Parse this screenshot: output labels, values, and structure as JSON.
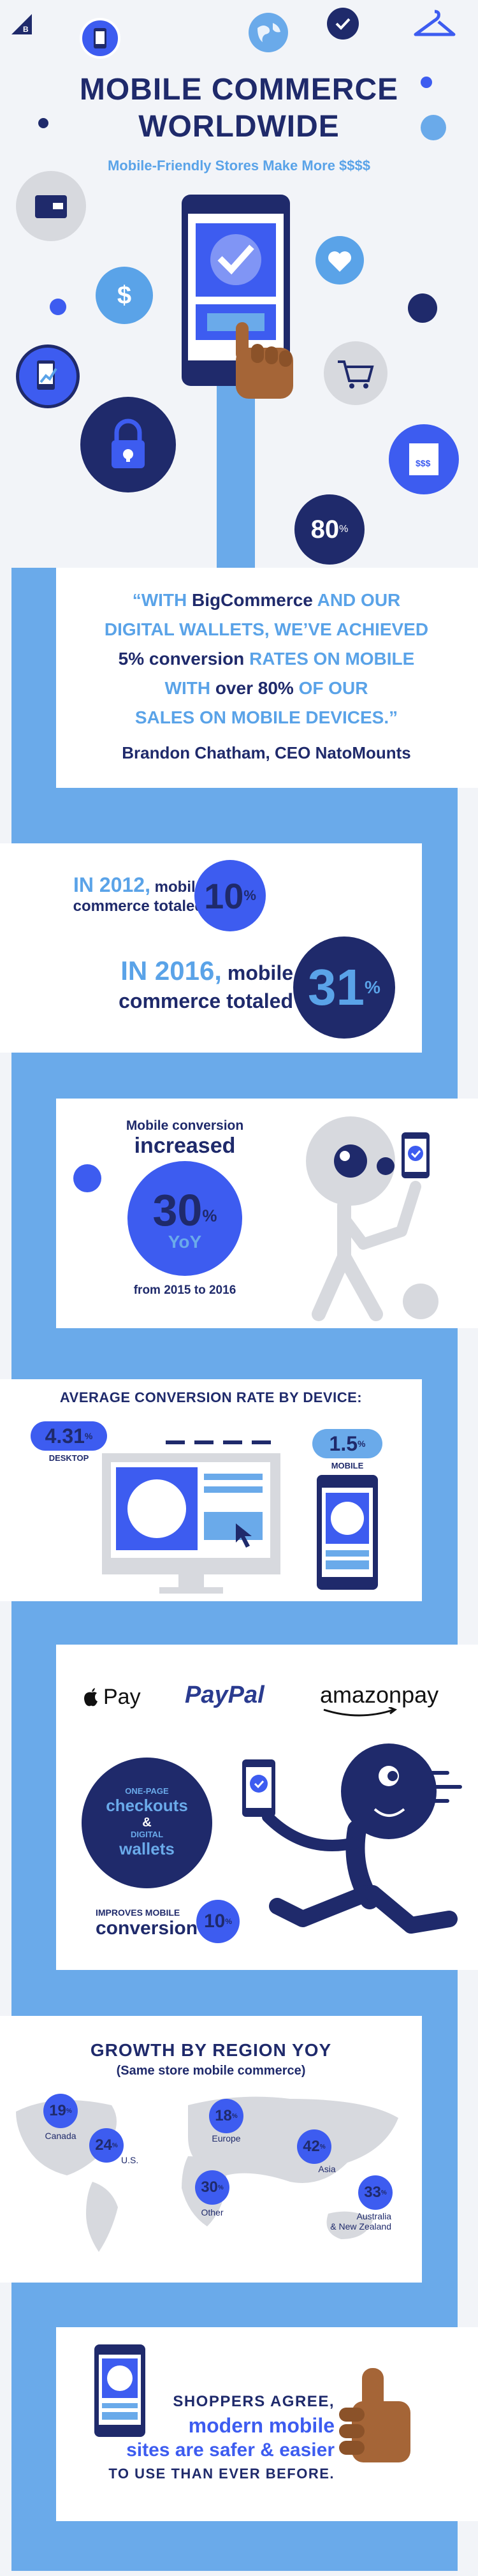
{
  "colors": {
    "navy": "#1f2a6b",
    "royal": "#3d5cf0",
    "sky": "#5aa3e8",
    "path": "#6aaaea",
    "skin": "#a56537",
    "gray": "#d7d9de"
  },
  "icons": [
    "bigcommerce-logo",
    "phone-icon",
    "globe-icon",
    "checkmark-badge-icon",
    "hanger-icon",
    "wallet-icon",
    "dollar-icon",
    "heart-icon",
    "growth-phone-icon",
    "cart-icon",
    "padlock-icon",
    "receipt-icon",
    "apple-logo",
    "paypal-logo",
    "amazon-pay-logo"
  ],
  "header": {
    "title_line1": "MOBILE COMMERCE",
    "title_line2": "WORLDWIDE",
    "subtitle": "Mobile-Friendly Stores Make More $$$$",
    "badge": "80",
    "badge_unit": "%"
  },
  "quote": {
    "line1_a": "“WITH ",
    "line1_b": "BigCommerce",
    "line1_c": " AND OUR",
    "line2": "DIGITAL WALLETS, WE’VE ACHIEVED",
    "line3_a": "5% conversion",
    "line3_b": " RATES ON MOBILE",
    "line4_a": "WITH ",
    "line4_b": "over 80%",
    "line4_c": " OF OUR",
    "line5": "SALES ON MOBILE DEVICES.”",
    "author": "Brandon Chatham, CEO NatoMounts"
  },
  "stats2012": {
    "year": "IN 2012,",
    "text1": " mobile",
    "text2": "commerce totaled",
    "value": "10",
    "unit": "%"
  },
  "stats2016": {
    "year": "IN 2016,",
    "text1": " mobile",
    "text2": "commerce totaled",
    "value": "31",
    "unit": "%"
  },
  "conversion": {
    "line1": "Mobile conversion",
    "line2": "increased",
    "value": "30",
    "unit": "%",
    "yoy": "YoY",
    "period": "from 2015 to 2016"
  },
  "device": {
    "title": "AVERAGE CONVERSION RATE BY DEVICE:",
    "desktop_value": "4.31",
    "desktop_unit": "%",
    "desktop_label": "DESKTOP",
    "mobile_value": "1.5",
    "mobile_unit": "%",
    "mobile_label": "MOBILE"
  },
  "wallets": {
    "apple": "Pay",
    "paypal": "PayPal",
    "amazon": "amazonpay",
    "circle_l1": "ONE-PAGE",
    "circle_l2": "checkouts",
    "circle_l3": "&",
    "circle_l4": "DIGITAL",
    "circle_l5": "wallets",
    "improves": "IMPROVES MOBILE",
    "conversion": "conversion",
    "value": "10",
    "unit": "%"
  },
  "growth": {
    "title": "GROWTH BY REGION YOY",
    "subtitle": "(Same store mobile commerce)",
    "regions": [
      {
        "name": "Canada",
        "value": "19",
        "unit": "%"
      },
      {
        "name": "U.S.",
        "value": "24",
        "unit": "%"
      },
      {
        "name": "Europe",
        "value": "18",
        "unit": "%"
      },
      {
        "name": "Other",
        "value": "30",
        "unit": "%"
      },
      {
        "name": "Asia",
        "value": "42",
        "unit": "%"
      },
      {
        "name": "Australia\n& New Zealand",
        "value": "33",
        "unit": "%"
      }
    ]
  },
  "footer": {
    "line1": "SHOPPERS AGREE,",
    "line2": "modern mobile",
    "line3": "sites are safer & easier",
    "line4": "TO USE THAN EVER BEFORE."
  }
}
